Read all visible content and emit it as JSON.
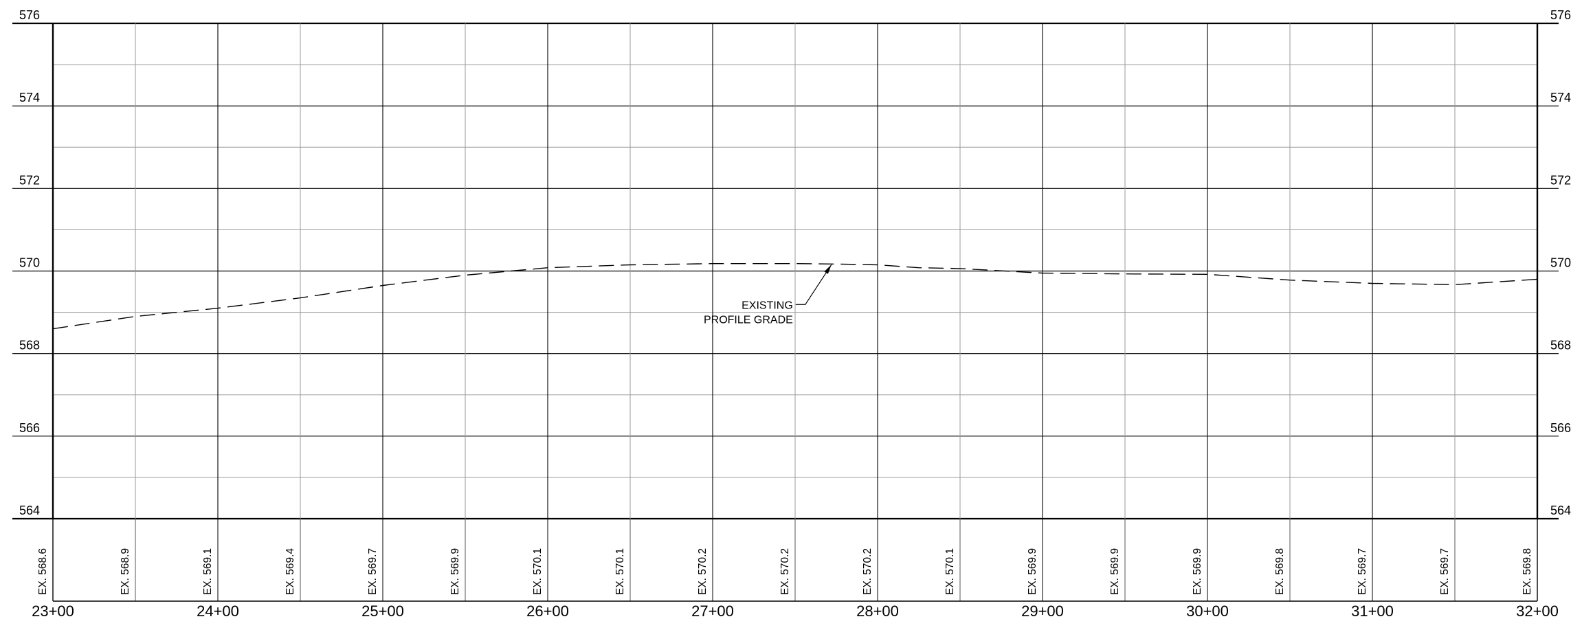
{
  "profile": {
    "elevations": [
      "576",
      "574",
      "572",
      "570",
      "568",
      "566",
      "564"
    ],
    "stations": [
      "23+00",
      "24+00",
      "25+00",
      "26+00",
      "27+00",
      "28+00",
      "29+00",
      "30+00",
      "31+00",
      "32+00"
    ],
    "existing_elevations": [
      {
        "station": 2300,
        "label": "EX. 568.6"
      },
      {
        "station": 2350,
        "label": "EX. 568.9"
      },
      {
        "station": 2400,
        "label": "EX. 569.1"
      },
      {
        "station": 2450,
        "label": "EX. 569.4"
      },
      {
        "station": 2500,
        "label": "EX. 569.7"
      },
      {
        "station": 2550,
        "label": "EX. 569.9"
      },
      {
        "station": 2600,
        "label": "EX. 570.1"
      },
      {
        "station": 2650,
        "label": "EX. 570.1"
      },
      {
        "station": 2700,
        "label": "EX. 570.2"
      },
      {
        "station": 2750,
        "label": "EX. 570.2"
      },
      {
        "station": 2800,
        "label": "EX. 570.2"
      },
      {
        "station": 2850,
        "label": "EX. 570.1"
      },
      {
        "station": 2900,
        "label": "EX. 569.9"
      },
      {
        "station": 2950,
        "label": "EX. 569.9"
      },
      {
        "station": 3000,
        "label": "EX. 569.9"
      },
      {
        "station": 3050,
        "label": "EX. 569.8"
      },
      {
        "station": 3100,
        "label": "EX. 569.7"
      },
      {
        "station": 3150,
        "label": "EX. 569.7"
      },
      {
        "station": 3200,
        "label": "EX. 569.8"
      }
    ],
    "grade_line": [
      [
        2300,
        568.6
      ],
      [
        2350,
        568.9
      ],
      [
        2400,
        569.1
      ],
      [
        2450,
        569.35
      ],
      [
        2500,
        569.65
      ],
      [
        2550,
        569.9
      ],
      [
        2600,
        570.08
      ],
      [
        2650,
        570.15
      ],
      [
        2700,
        570.18
      ],
      [
        2750,
        570.18
      ],
      [
        2775,
        570.17
      ],
      [
        2800,
        570.15
      ],
      [
        2825,
        570.08
      ],
      [
        2850,
        570.06
      ],
      [
        2900,
        569.95
      ],
      [
        2950,
        569.93
      ],
      [
        3000,
        569.92
      ],
      [
        3050,
        569.78
      ],
      [
        3100,
        569.7
      ],
      [
        3150,
        569.67
      ],
      [
        3200,
        569.8
      ]
    ],
    "callout": {
      "line1": "EXISTING",
      "line2": "PROFILE GRADE",
      "target_station": 2772,
      "target_elev": 570.17
    },
    "range": {
      "station_min": 2300,
      "station_max": 3200,
      "elev_min": 564,
      "elev_max": 576
    },
    "colors": {
      "major_grid": "#000000",
      "minor_grid": "#9a9a9a",
      "grade_line": "#000000"
    }
  }
}
